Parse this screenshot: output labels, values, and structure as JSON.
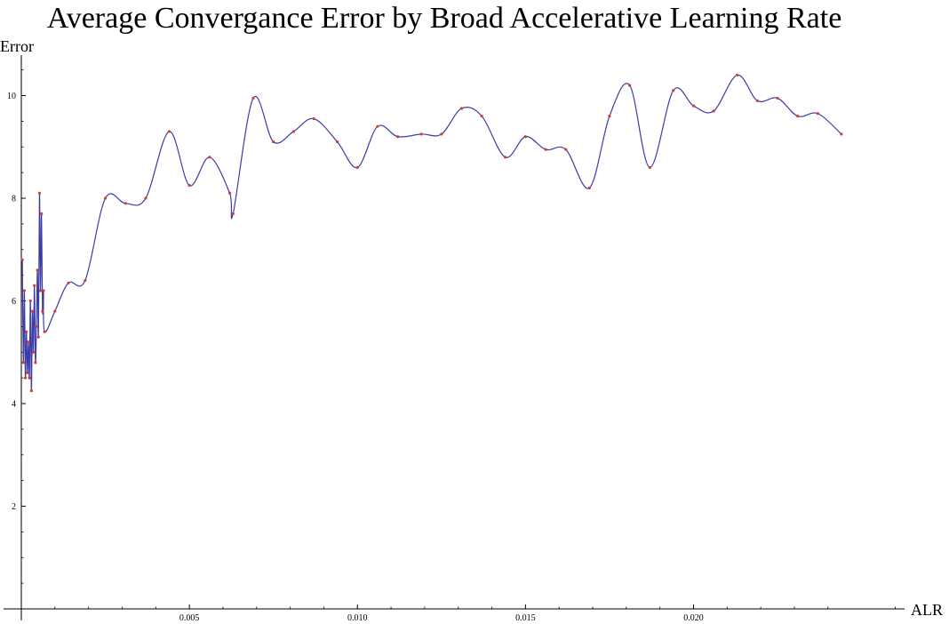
{
  "chart_data": {
    "type": "line",
    "title": "Average Convergance Error by Broad Accelerative Learning Rate",
    "xlabel": "ALR",
    "ylabel": "Error",
    "xlim": [
      0,
      0.0262
    ],
    "ylim": [
      0,
      10.65
    ],
    "xticks": [
      0.005,
      0.01,
      0.015,
      0.02
    ],
    "xtick_labels": [
      "0.005",
      "0.010",
      "0.015",
      "0.020"
    ],
    "yticks": [
      2,
      4,
      6,
      8,
      10
    ],
    "ytick_labels": [
      "2",
      "4",
      "6",
      "8",
      "10"
    ],
    "grid": false,
    "line_color": "#3c3ca8",
    "marker_color": "#d04030",
    "series": [
      {
        "x": [
          3e-05,
          6e-05,
          9e-05,
          0.00012,
          0.00015,
          0.00018,
          0.00021,
          0.00024,
          0.00027,
          0.0003,
          0.00033,
          0.00036,
          0.00039,
          0.00042,
          0.00045,
          0.00048,
          0.00051,
          0.00054,
          0.00057,
          0.0006,
          0.00063,
          0.00066,
          0.00069,
          0.001,
          0.0014,
          0.0019,
          0.0025,
          0.0031,
          0.0037,
          0.0044,
          0.005,
          0.0056,
          0.0062,
          0.0063,
          0.0069,
          0.0075,
          0.0081,
          0.0087,
          0.0094,
          0.01,
          0.0106,
          0.0112,
          0.0119,
          0.0125,
          0.0131,
          0.0137,
          0.0144,
          0.015,
          0.0156,
          0.0162,
          0.0169,
          0.0175,
          0.0181,
          0.0187,
          0.0194,
          0.02,
          0.0206,
          0.0213,
          0.0219,
          0.0225,
          0.0231,
          0.0237,
          0.0244
        ],
        "y": [
          6.8,
          4.8,
          6.2,
          4.5,
          5.4,
          4.6,
          5.2,
          4.5,
          6.0,
          4.25,
          5.8,
          5.0,
          6.3,
          4.8,
          5.5,
          6.6,
          5.3,
          8.1,
          6.2,
          7.7,
          5.8,
          6.2,
          5.4,
          5.8,
          6.35,
          6.4,
          8.0,
          7.9,
          8.0,
          9.3,
          8.25,
          8.8,
          8.1,
          7.7,
          9.95,
          9.1,
          9.3,
          9.55,
          9.1,
          8.6,
          9.4,
          9.2,
          9.25,
          9.25,
          9.75,
          9.6,
          8.8,
          9.2,
          8.95,
          8.95,
          8.2,
          9.6,
          10.2,
          8.6,
          10.1,
          9.8,
          9.7,
          10.4,
          9.9,
          9.95,
          9.6,
          9.65,
          9.25
        ]
      }
    ]
  }
}
